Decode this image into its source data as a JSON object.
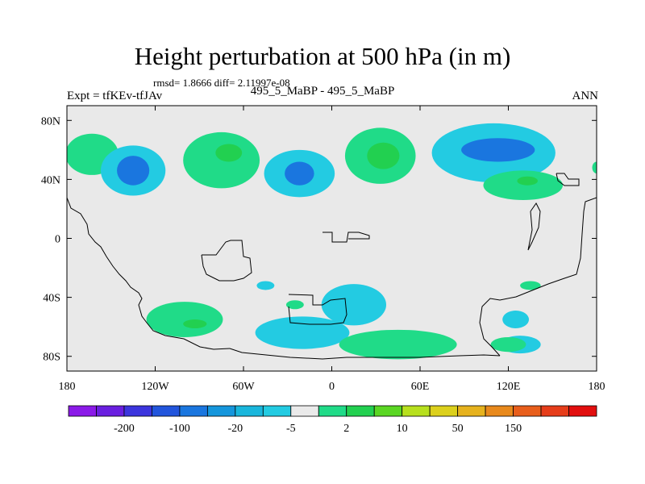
{
  "chart_data": {
    "type": "heatmap",
    "title": "Height perturbation at 500 hPa (in m)",
    "stats_text": "rmsd= 1.8666  diff= 2.11997e-08",
    "left_string": "Expt = tfKEv-tfJAv",
    "center_string": "495_5_MaBP - 495_5_MaBP",
    "right_string": "ANN",
    "xlim": [
      -180,
      180
    ],
    "ylim": [
      -90,
      90
    ],
    "x_ticks": [
      {
        "value": -180,
        "label": "180"
      },
      {
        "value": -120,
        "label": "120W"
      },
      {
        "value": -60,
        "label": "60W"
      },
      {
        "value": 0,
        "label": "0"
      },
      {
        "value": 60,
        "label": "60E"
      },
      {
        "value": 120,
        "label": "120E"
      },
      {
        "value": 180,
        "label": "180"
      }
    ],
    "y_ticks": [
      {
        "value": 80,
        "label": "80N"
      },
      {
        "value": 40,
        "label": "40N"
      },
      {
        "value": 0,
        "label": "0"
      },
      {
        "value": -40,
        "label": "40S"
      },
      {
        "value": -80,
        "label": "80S"
      }
    ],
    "colorbar": {
      "colors": [
        "#8b1ae8",
        "#6a1fe0",
        "#3c35dd",
        "#2255dc",
        "#1a76df",
        "#1596dc",
        "#19b6dc",
        "#23cbe2",
        "#eaeaea",
        "#20db88",
        "#22d050",
        "#5ad623",
        "#b7e01e",
        "#dcd01c",
        "#e6b21d",
        "#e8891c",
        "#e85e1b",
        "#e63d1a",
        "#e20f0f"
      ],
      "tick_labels": [
        {
          "after_box": 1,
          "label": "-200"
        },
        {
          "after_box": 3,
          "label": "-100"
        },
        {
          "after_box": 5,
          "label": "-20"
        },
        {
          "after_box": 7,
          "label": "-5"
        },
        {
          "after_box": 9,
          "label": "2"
        },
        {
          "after_box": 11,
          "label": "10"
        },
        {
          "after_box": 13,
          "label": "50"
        },
        {
          "after_box": 15,
          "label": "150"
        }
      ]
    },
    "anomaly_cells": [
      {
        "lon": -163,
        "lat": 57,
        "rx": 18,
        "ry": 14,
        "value": 3
      },
      {
        "lon": -135,
        "lat": 46,
        "rx": 22,
        "ry": 17,
        "value": -8
      },
      {
        "lon": -135,
        "lat": 46,
        "rx": 11,
        "ry": 10,
        "value": -30
      },
      {
        "lon": -75,
        "lat": 53,
        "rx": 26,
        "ry": 19,
        "value": 3
      },
      {
        "lon": -70,
        "lat": 58,
        "rx": 9,
        "ry": 6,
        "value": 12
      },
      {
        "lon": -22,
        "lat": 44,
        "rx": 24,
        "ry": 16,
        "value": -8
      },
      {
        "lon": -22,
        "lat": 44,
        "rx": 10,
        "ry": 8,
        "value": -30
      },
      {
        "lon": 33,
        "lat": 56,
        "rx": 24,
        "ry": 19,
        "value": 3
      },
      {
        "lon": 35,
        "lat": 56,
        "rx": 11,
        "ry": 9,
        "value": 12
      },
      {
        "lon": 110,
        "lat": 58,
        "rx": 42,
        "ry": 20,
        "value": -8
      },
      {
        "lon": 113,
        "lat": 60,
        "rx": 25,
        "ry": 8,
        "value": -30
      },
      {
        "lon": 130,
        "lat": 36,
        "rx": 27,
        "ry": 10,
        "value": 3
      },
      {
        "lon": 133,
        "lat": 39,
        "rx": 7,
        "ry": 3,
        "value": 12
      },
      {
        "lon": 180,
        "lat": 48,
        "rx": 3,
        "ry": 4,
        "value": 3
      },
      {
        "lon": -100,
        "lat": -55,
        "rx": 26,
        "ry": 12,
        "value": 3
      },
      {
        "lon": -93,
        "lat": -58,
        "rx": 8,
        "ry": 3,
        "value": 12
      },
      {
        "lon": -45,
        "lat": -32,
        "rx": 6,
        "ry": 3,
        "value": -8
      },
      {
        "lon": -25,
        "lat": -45,
        "rx": 6,
        "ry": 3,
        "value": 3
      },
      {
        "lon": -20,
        "lat": -64,
        "rx": 32,
        "ry": 11,
        "value": -8
      },
      {
        "lon": 15,
        "lat": -45,
        "rx": 22,
        "ry": 14,
        "value": -8
      },
      {
        "lon": 45,
        "lat": -72,
        "rx": 40,
        "ry": 10,
        "value": 3
      },
      {
        "lon": 125,
        "lat": -55,
        "rx": 9,
        "ry": 6,
        "value": -8
      },
      {
        "lon": 128,
        "lat": -72,
        "rx": 14,
        "ry": 6,
        "value": -8
      },
      {
        "lon": 120,
        "lat": -72,
        "rx": 12,
        "ry": 5,
        "value": 3
      },
      {
        "lon": 135,
        "lat": -32,
        "rx": 7,
        "ry": 3,
        "value": 3
      }
    ]
  }
}
